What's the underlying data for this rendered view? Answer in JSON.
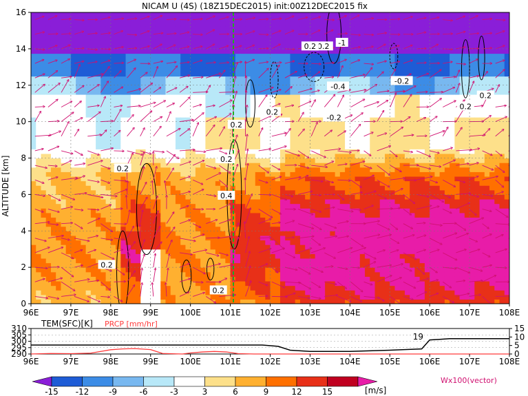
{
  "title": "NICAM U (4S) (18Z15DEC2015) init:00Z12DEC2015 fix",
  "chart_data": [
    {
      "type": "heatmap",
      "title": "NICAM U (4S) (18Z15DEC2015) init:00Z12DEC2015 fix",
      "ylabel": "ALTITUDE [km]",
      "xlabel": "",
      "x_ticks": [
        "96E",
        "97E",
        "98E",
        "99E",
        "100E",
        "101E",
        "102E",
        "103E",
        "104E",
        "105E",
        "106E",
        "107E",
        "108E"
      ],
      "y_ticks": [
        "0",
        "2",
        "4",
        "6",
        "8",
        "10",
        "12",
        "14",
        "16"
      ],
      "xlim": [
        96,
        108
      ],
      "ylim": [
        0,
        16
      ],
      "contour_labels": [
        "0.2",
        "0.2",
        "0.2",
        "0.2",
        "0.2",
        "0.4",
        "0.2",
        "0.2",
        "0.2",
        "0.2",
        "-0.2",
        "-0.2",
        "-0.2",
        "-1",
        "-0.4",
        "0.2"
      ],
      "color_levels": [
        -15,
        -12,
        -9,
        -6,
        -3,
        3,
        6,
        9,
        12,
        15
      ],
      "colorbar_labels": [
        "-15",
        "-12",
        "-9",
        "-6",
        "-3",
        "3",
        "6",
        "9",
        "12",
        "15"
      ],
      "colorbar_colors": [
        "#8a1ed8",
        "#1e5cd6",
        "#3c8ce6",
        "#78b8f0",
        "#b8e8f8",
        "#ffffff",
        "#fde08a",
        "#ffb030",
        "#ff7000",
        "#e83018",
        "#c00020",
        "#e81ca8"
      ],
      "colorbar_unit": "[m/s]",
      "vector_label": "Wx100(vector)",
      "grid": true
    },
    {
      "type": "line",
      "series": [
        {
          "name": "TEM(SFC)[K]",
          "color": "#000000",
          "x": [
            96,
            97,
            98,
            99,
            100,
            101,
            101.3,
            101.8,
            102.2,
            102.5,
            103,
            104,
            105,
            105.8,
            106,
            106.5,
            107,
            108
          ],
          "values": [
            297,
            297,
            297,
            297,
            297,
            297,
            297,
            297,
            296,
            293,
            292,
            292,
            293,
            294,
            301,
            302,
            302,
            302
          ]
        },
        {
          "name": "PRCP [mm/hr]",
          "color": "#ff3a3a",
          "x": [
            96,
            96.5,
            97,
            97.5,
            98,
            98.3,
            98.6,
            99,
            99.3,
            99.8,
            100,
            100.3,
            100.6,
            100.9,
            101.2,
            101.6,
            102,
            103,
            104,
            105,
            106,
            107,
            108
          ],
          "values": [
            0,
            0.3,
            0.2,
            0.5,
            2.5,
            3,
            3.2,
            2.6,
            0.3,
            0,
            0.6,
            1.2,
            1.5,
            1.2,
            0.2,
            0,
            0,
            0,
            0,
            0,
            0,
            0,
            0
          ]
        }
      ],
      "left_axis_ticks": [
        "310",
        "305",
        "300",
        "295",
        "290"
      ],
      "right_axis_ticks": [
        "15",
        "10",
        "5",
        "0"
      ],
      "annotation": "19",
      "x_ticks": [
        "96E",
        "97E",
        "98E",
        "99E",
        "100E",
        "101E",
        "102E",
        "103E",
        "104E",
        "105E",
        "106E",
        "107E",
        "108E"
      ],
      "xlim": [
        96,
        108
      ]
    }
  ]
}
